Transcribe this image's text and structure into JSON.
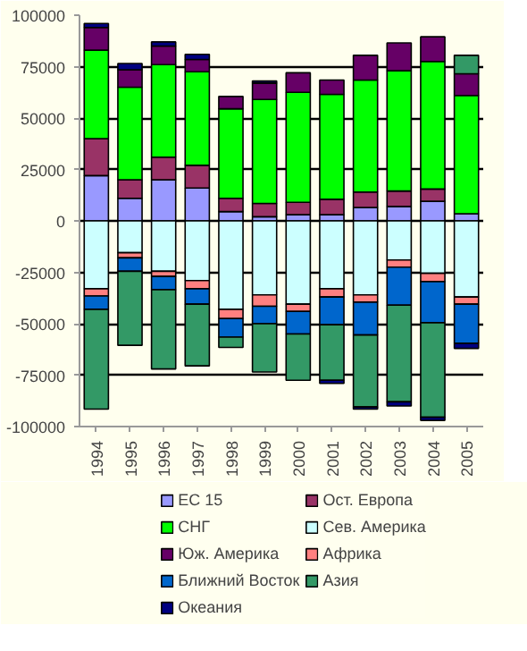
{
  "chart_data": {
    "type": "bar",
    "stacked": true,
    "categories": [
      "1994",
      "1995",
      "1996",
      "1997",
      "1998",
      "1999",
      "2000",
      "2001",
      "2002",
      "2003",
      "2004",
      "2005"
    ],
    "series": [
      {
        "name": "ЕС 15",
        "color": "#9999ff",
        "values": [
          22000,
          11000,
          20000,
          16000,
          4500,
          2000,
          3000,
          3000,
          6500,
          7000,
          9500,
          3500
        ]
      },
      {
        "name": "Ост. Европа",
        "color": "#993366",
        "values": [
          18000,
          9000,
          11000,
          11000,
          6500,
          6500,
          6000,
          7500,
          7500,
          7500,
          6000,
          null
        ]
      },
      {
        "name": "СНГ",
        "color": "#00ff00",
        "values": [
          43000,
          45000,
          45000,
          45500,
          43500,
          50500,
          53500,
          51000,
          54500,
          58500,
          62000,
          57500
        ]
      },
      {
        "name": "Сев. Америка",
        "color": "#ccffff",
        "values": [
          -33000,
          -15500,
          -24500,
          -29000,
          -43000,
          -36000,
          -40500,
          -33000,
          -36000,
          -19000,
          -25500,
          -37000
        ]
      },
      {
        "name": "Юж. Америка",
        "color": "#660066",
        "values": [
          11000,
          8500,
          9000,
          6000,
          6000,
          8000,
          9500,
          7000,
          12000,
          13500,
          12000,
          10500
        ]
      },
      {
        "name": "Африка",
        "color": "#ff8080",
        "values": [
          -3500,
          -2500,
          -2500,
          -4000,
          -4500,
          -5500,
          -3500,
          -4000,
          -3500,
          -3500,
          -4000,
          -3500
        ]
      },
      {
        "name": "Ближний Восток",
        "color": "#0066cc",
        "values": [
          -6500,
          -6500,
          -6500,
          -7500,
          -9000,
          -8500,
          -11000,
          -13500,
          -16000,
          -18500,
          -20000,
          -19000
        ]
      },
      {
        "name": "Азия",
        "color": "#339966",
        "values": [
          -48500,
          -36000,
          -38500,
          -30000,
          -5000,
          -23500,
          -22500,
          -27000,
          -35000,
          -47000,
          -46000,
          9000
        ]
      },
      {
        "name": "Океания",
        "color": "#000080",
        "values": [
          2000,
          3000,
          2000,
          2500,
          null,
          1000,
          null,
          -1500,
          -1000,
          -2000,
          -1500,
          -2500
        ]
      }
    ],
    "ylim": [
      -100000,
      100000
    ],
    "yticks": [
      -100000,
      -75000,
      -50000,
      -25000,
      0,
      25000,
      50000,
      75000,
      100000
    ],
    "grid": "y",
    "legend": "bottom"
  }
}
